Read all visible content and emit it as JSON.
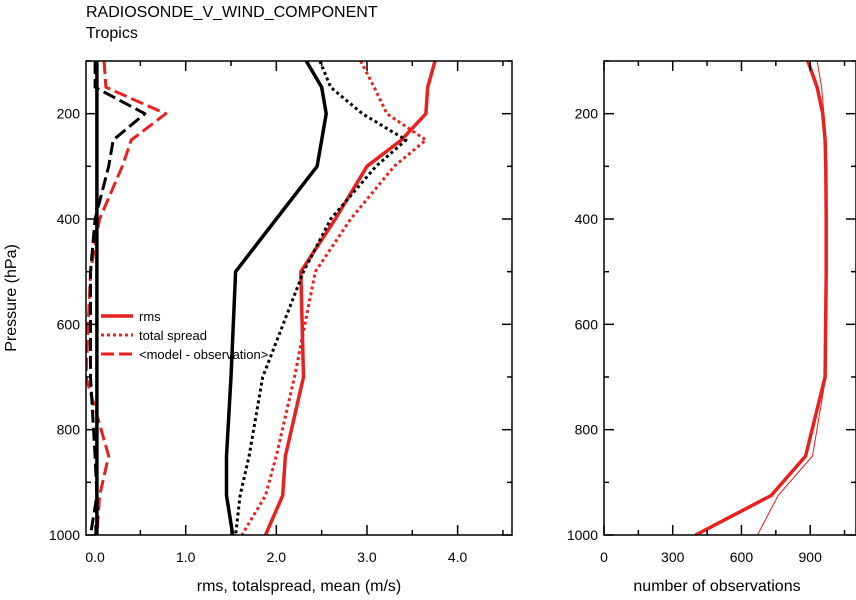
{
  "title": "RADIOSONDE_V_WIND_COMPONENT",
  "subtitle": "Tropics",
  "chart_data": [
    {
      "type": "line",
      "panel": "left",
      "xlabel": "rms, totalspread, mean (m/s)",
      "ylabel": "Pressure (hPa)",
      "xlim": [
        -0.1,
        4.6
      ],
      "ylim": [
        1000,
        100
      ],
      "xticks": [
        "0.0",
        "1.0",
        "2.0",
        "3.0",
        "4.0"
      ],
      "xtick_values": [
        0,
        1,
        2,
        3,
        4
      ],
      "yticks": [
        "200",
        "400",
        "600",
        "800",
        "1000"
      ],
      "ytick_values": [
        200,
        400,
        600,
        800,
        1000
      ],
      "y": [
        100,
        150,
        200,
        250,
        300,
        400,
        500,
        700,
        850,
        925,
        1000
      ],
      "legend_position": "left-middle",
      "series": [
        {
          "name": "rms",
          "color": "#e8201e",
          "style": "solid",
          "width": 3.5,
          "values": [
            3.75,
            3.67,
            3.65,
            3.38,
            3.0,
            2.65,
            2.27,
            2.3,
            2.1,
            2.07,
            1.88
          ]
        },
        {
          "name": "total spread",
          "color": "#e8201e",
          "style": "dotted",
          "width": 3,
          "values": [
            2.93,
            3.08,
            3.22,
            3.65,
            3.3,
            2.82,
            2.43,
            2.2,
            2.0,
            1.88,
            1.62
          ]
        },
        {
          "name": "<model - observation>",
          "color": "#e8201e",
          "style": "dashed",
          "width": 3,
          "values": [
            0.1,
            0.12,
            0.78,
            0.4,
            0.3,
            0.05,
            -0.05,
            -0.1,
            0.15,
            0.05,
            0.02
          ]
        },
        {
          "color": "#000000",
          "style": "solid",
          "width": 3.5,
          "values": [
            2.33,
            2.5,
            2.55,
            2.5,
            2.45,
            2.0,
            1.55,
            1.5,
            1.45,
            1.45,
            1.52
          ]
        },
        {
          "color": "#000000",
          "style": "dotted",
          "width": 3,
          "values": [
            2.48,
            2.6,
            2.95,
            3.43,
            3.1,
            2.6,
            2.3,
            1.85,
            1.7,
            1.6,
            1.55
          ]
        },
        {
          "color": "#000000",
          "style": "dashed",
          "width": 3,
          "values": [
            0.0,
            0.0,
            0.55,
            0.2,
            0.15,
            0.0,
            -0.05,
            -0.05,
            0.0,
            0.02,
            -0.05
          ]
        },
        {
          "color": "#000000",
          "style": "solid",
          "width": 3.5,
          "values": [
            0.02,
            0.02,
            0.02,
            0.02,
            0.02,
            0.02,
            0.02,
            0.02,
            0.02,
            0.02,
            0.02
          ]
        }
      ]
    },
    {
      "type": "line",
      "panel": "right",
      "xlabel": "number of observations",
      "xlim": [
        0,
        1100
      ],
      "ylim": [
        1000,
        100
      ],
      "xticks": [
        "0",
        "300",
        "600",
        "900"
      ],
      "xtick_values": [
        0,
        300,
        600,
        900
      ],
      "yticks": [
        "200",
        "400",
        "600",
        "800",
        "1000"
      ],
      "ytick_values": [
        200,
        400,
        600,
        800,
        1000
      ],
      "y": [
        100,
        150,
        200,
        250,
        300,
        400,
        500,
        700,
        850,
        925,
        1000
      ],
      "series": [
        {
          "color": "#e8201e",
          "style": "solid",
          "width": 3.5,
          "values": [
            890,
            930,
            955,
            965,
            968,
            970,
            970,
            965,
            880,
            730,
            400
          ]
        },
        {
          "color": "#e8201e",
          "style": "solid",
          "width": 1,
          "values": [
            930,
            950,
            960,
            965,
            968,
            970,
            970,
            968,
            910,
            760,
            670
          ]
        }
      ]
    }
  ]
}
